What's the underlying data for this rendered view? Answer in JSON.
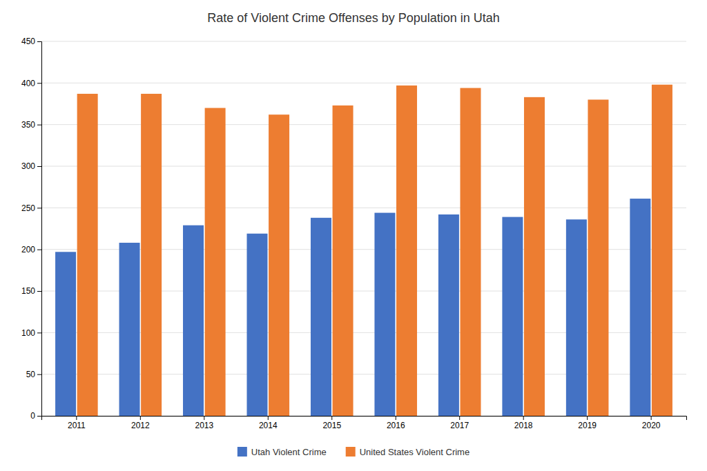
{
  "chart_data": {
    "type": "bar",
    "title": "Rate of Violent Crime Offenses by Population in Utah",
    "categories": [
      "2011",
      "2012",
      "2013",
      "2014",
      "2015",
      "2016",
      "2017",
      "2018",
      "2019",
      "2020"
    ],
    "series": [
      {
        "name": "Utah Violent Crime",
        "color": "#4472C4",
        "values": [
          197,
          208,
          229,
          219,
          238,
          244,
          242,
          239,
          236,
          261
        ]
      },
      {
        "name": "United States Violent Crime",
        "color": "#ED7D31",
        "values": [
          387,
          387,
          370,
          362,
          373,
          397,
          394,
          383,
          380,
          398
        ]
      }
    ],
    "ylim": [
      0,
      450
    ],
    "yticks": [
      0,
      50,
      100,
      150,
      200,
      250,
      300,
      350,
      400,
      450
    ],
    "grid": true,
    "legend": "bottom"
  }
}
